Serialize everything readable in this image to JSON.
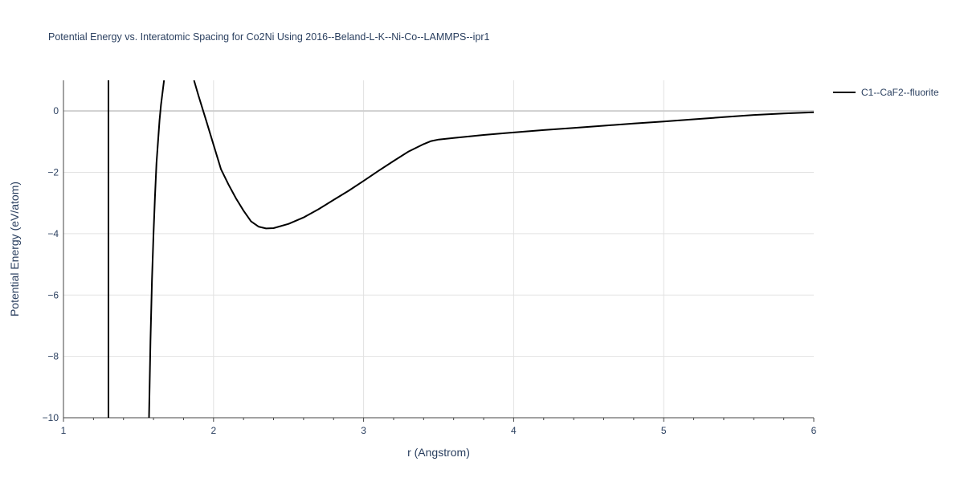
{
  "chart_data": {
    "type": "line",
    "title": "Potential Energy vs. Interatomic Spacing for Co2Ni Using 2016--Beland-L-K--Ni-Co--LAMMPS--ipr1",
    "xlabel": "r (Angstrom)",
    "ylabel": "Potential Energy (eV/atom)",
    "xlim": [
      1,
      6
    ],
    "ylim": [
      -10,
      1
    ],
    "x_ticks": [
      "1",
      "2",
      "3",
      "4",
      "5",
      "6"
    ],
    "y_ticks": [
      "0",
      "−2",
      "−4",
      "−6",
      "−8",
      "−10"
    ],
    "grid": true,
    "legend_position": "top-right",
    "series": [
      {
        "name": "C1--CaF2--fluorite",
        "color": "#000000",
        "segments": [
          [
            [
              1.3,
              -10
            ],
            [
              1.3,
              1
            ]
          ],
          [
            [
              1.57,
              -10
            ],
            [
              1.58,
              -7.5
            ],
            [
              1.59,
              -5.5
            ],
            [
              1.6,
              -4.0
            ],
            [
              1.61,
              -2.8
            ],
            [
              1.62,
              -1.7
            ],
            [
              1.64,
              -0.3
            ],
            [
              1.65,
              0.2
            ],
            [
              1.67,
              1
            ]
          ],
          [
            [
              1.87,
              1
            ],
            [
              1.9,
              0.5
            ],
            [
              1.95,
              -0.3
            ],
            [
              2.0,
              -1.1
            ],
            [
              2.05,
              -1.9
            ],
            [
              2.1,
              -2.4
            ],
            [
              2.15,
              -2.85
            ],
            [
              2.2,
              -3.25
            ],
            [
              2.25,
              -3.6
            ],
            [
              2.3,
              -3.77
            ],
            [
              2.35,
              -3.83
            ],
            [
              2.4,
              -3.82
            ],
            [
              2.5,
              -3.68
            ],
            [
              2.6,
              -3.47
            ],
            [
              2.7,
              -3.2
            ],
            [
              2.8,
              -2.9
            ],
            [
              2.9,
              -2.6
            ],
            [
              3.0,
              -2.28
            ],
            [
              3.1,
              -1.95
            ],
            [
              3.2,
              -1.63
            ],
            [
              3.3,
              -1.32
            ],
            [
              3.4,
              -1.08
            ],
            [
              3.45,
              -0.98
            ],
            [
              3.5,
              -0.93
            ],
            [
              3.6,
              -0.88
            ],
            [
              3.7,
              -0.83
            ],
            [
              3.8,
              -0.78
            ],
            [
              4.0,
              -0.7
            ],
            [
              4.2,
              -0.62
            ],
            [
              4.4,
              -0.55
            ],
            [
              4.6,
              -0.48
            ],
            [
              4.8,
              -0.41
            ],
            [
              5.0,
              -0.34
            ],
            [
              5.2,
              -0.27
            ],
            [
              5.4,
              -0.2
            ],
            [
              5.6,
              -0.13
            ],
            [
              5.8,
              -0.08
            ],
            [
              6.0,
              -0.04
            ]
          ]
        ]
      }
    ]
  }
}
